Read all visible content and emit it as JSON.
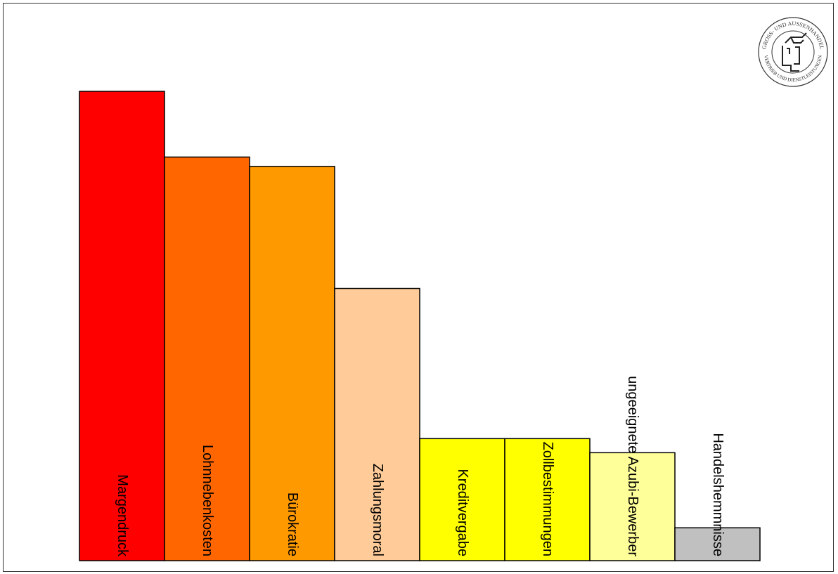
{
  "chart_data": {
    "type": "bar",
    "title": "",
    "xlabel": "",
    "ylabel": "",
    "ylim": [
      0,
      100
    ],
    "categories": [
      "Margendruck",
      "Lohnnebenkosten",
      "Bürokratie",
      "Zahlungsmoral",
      "Kreditvergabe",
      "Zollbestimmungen",
      "ungeeignete Azubi-Bewerber",
      "Handelshemmnisse"
    ],
    "values": [
      100,
      86,
      84,
      58,
      26,
      26,
      23,
      7
    ],
    "colors": [
      "#ff0000",
      "#ff6600",
      "#ff9900",
      "#ffcc99",
      "#ffff00",
      "#ffff00",
      "#ffff99",
      "#c0c0c0"
    ]
  },
  "logo": {
    "text_top": "GROSS- UND AUSSENHANDEL",
    "text_bottom": "VERTRIEB UND DIENSTLEISTUNGEN"
  }
}
